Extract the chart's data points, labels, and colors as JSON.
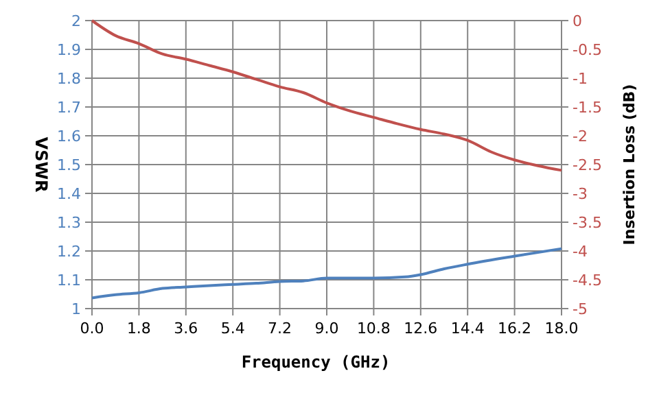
{
  "chart_data": {
    "type": "line",
    "xlabel": "Frequency (GHz)",
    "ylabel": "VSWR",
    "y2label": "Insertion Loss (dB)",
    "xlim": [
      0,
      18
    ],
    "xticks": [
      {
        "value": 0,
        "label": "0.0"
      },
      1.8,
      3.6,
      5.4,
      7.2,
      {
        "value": 9,
        "label": "9.0"
      },
      10.8,
      12.6,
      14.4,
      16.2,
      {
        "value": 18,
        "label": "18.0"
      }
    ],
    "ylim": [
      1,
      2
    ],
    "yticks": [
      1,
      1.1,
      1.2,
      1.3,
      1.4,
      1.5,
      1.6,
      1.7,
      1.8,
      1.9,
      2
    ],
    "y2lim": [
      -5,
      0
    ],
    "y2ticks": [
      -5,
      -4.5,
      -4,
      -3.5,
      -3,
      -2.5,
      -2,
      -1.5,
      -1,
      -0.5,
      0
    ],
    "grid": true,
    "marker": "none",
    "line_style": "solid",
    "series": [
      {
        "color": "#4f81bd",
        "x": [
          0,
          0.9,
          1.8,
          2.7,
          3.6,
          4.5,
          5.4,
          6.3,
          7.2,
          8.1,
          9,
          10.8,
          12,
          12.6,
          13.5,
          14.4,
          16.2,
          18
        ],
        "values": [
          1.037,
          1.048,
          1.055,
          1.07,
          1.075,
          1.08,
          1.084,
          1.088,
          1.094,
          1.096,
          1.106,
          1.106,
          1.11,
          1.118,
          1.138,
          1.154,
          1.182,
          1.208
        ]
      },
      {
        "color": "#c0504d",
        "axis": "y2",
        "x": [
          0,
          0.9,
          1.8,
          2.7,
          3.6,
          4.5,
          5.4,
          6.3,
          7.2,
          8.1,
          9,
          9.9,
          10.8,
          11.7,
          12.6,
          13.5,
          14.4,
          15.3,
          16.2,
          17.1,
          18
        ],
        "values": [
          0,
          -0.26,
          -0.4,
          -0.58,
          -0.67,
          -0.78,
          -0.89,
          -1.02,
          -1.15,
          -1.25,
          -1.43,
          -1.57,
          -1.68,
          -1.79,
          -1.89,
          -1.97,
          -2.08,
          -2.28,
          -2.42,
          -2.52,
          -2.6
        ]
      }
    ]
  }
}
